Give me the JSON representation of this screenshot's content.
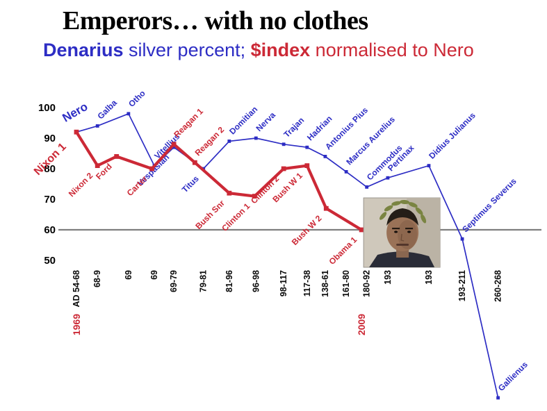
{
  "colors": {
    "blue": "#2d2dc4",
    "red": "#cc2936",
    "gray_line": "#7f7f7f",
    "black": "#000000"
  },
  "images": {
    "obama_photo": "obama-with-laurel-wreath"
  },
  "chart_data": {
    "type": "line",
    "title": "Emperors… with no clothes",
    "subtitle_parts": {
      "denarius": "Denarius",
      "silver": " silver percent; ",
      "index": "$index",
      "normalised": " normalised to Nero"
    },
    "ylim": [
      0,
      100
    ],
    "yticks": [
      100,
      90,
      80,
      70,
      60,
      50
    ],
    "reference_line": 60,
    "grid": false,
    "legend": "none (subtitle acts as legend)",
    "series": [
      {
        "name": "Denarius silver percent",
        "color": "#2d2dc4",
        "style": "thin",
        "points": [
          {
            "label": "Nero",
            "period": "AD 54-68",
            "x": 3.2,
            "value": 92,
            "labelPos": "above",
            "big": true
          },
          {
            "label": "Galba",
            "period": "68-9",
            "x": 7.6,
            "value": 94,
            "labelPos": "above"
          },
          {
            "label": "Otho",
            "period": "69",
            "x": 14.1,
            "value": 98,
            "labelPos": "above"
          },
          {
            "label": "Vitellius",
            "period": "69",
            "x": 19.5,
            "value": 81,
            "labelPos": "above"
          },
          {
            "label": "Vespasian",
            "period": "69-79",
            "x": 23.6,
            "value": 87,
            "labelPos": "below"
          },
          {
            "label": "Titus",
            "period": "79-81",
            "x": 29.8,
            "value": 80,
            "labelPos": "below"
          },
          {
            "label": "Domitian",
            "period": "81-96",
            "x": 35.2,
            "value": 89,
            "labelPos": "above"
          },
          {
            "label": "Nerva",
            "period": "96-98",
            "x": 40.8,
            "value": 90,
            "labelPos": "above"
          },
          {
            "label": "Trajan",
            "period": "98-117",
            "x": 46.6,
            "value": 88,
            "labelPos": "above"
          },
          {
            "label": "Hadrian",
            "period": "117-38",
            "x": 51.5,
            "value": 87,
            "labelPos": "above"
          },
          {
            "label": "Antonius Pius",
            "period": "138-61",
            "x": 55.3,
            "value": 84,
            "labelPos": "above"
          },
          {
            "label": "Marcus Aurelius",
            "period": "161-80",
            "x": 59.7,
            "value": 79,
            "labelPos": "above"
          },
          {
            "label": "Commodus",
            "period": "180-92",
            "x": 64.0,
            "value": 74,
            "labelPos": "above"
          },
          {
            "label": "Pertinax",
            "period": "193",
            "x": 68.4,
            "value": 77,
            "labelPos": "above"
          },
          {
            "label": "Didius Julianus",
            "period": "193",
            "x": 77.0,
            "value": 81,
            "labelPos": "above"
          },
          {
            "label": "Septimus Severus",
            "period": "193-211",
            "x": 84.0,
            "value": 57,
            "labelPos": "above"
          },
          {
            "label": "Gallienus",
            "period": "260-268",
            "x": 91.5,
            "value": 5,
            "labelPos": "above"
          }
        ]
      },
      {
        "name": "$index normalised to Nero",
        "color": "#cc2936",
        "style": "thick",
        "points": [
          {
            "label": "Nixon 1",
            "year": "1969",
            "x": 3.2,
            "value": 92,
            "labelPos": "below",
            "big": true
          },
          {
            "label": "Nixon 2",
            "x": 7.6,
            "value": 81,
            "labelPos": "below"
          },
          {
            "label": "Ford",
            "x": 11.6,
            "value": 84,
            "labelPos": "below"
          },
          {
            "label": "Carter",
            "x": 19.0,
            "value": 80,
            "labelPos": "below"
          },
          {
            "label": "Reagan 1",
            "x": 23.6,
            "value": 88,
            "labelPos": "above"
          },
          {
            "label": "Reagan 2",
            "x": 28.0,
            "value": 82,
            "labelPos": "above"
          },
          {
            "label": "Bush Snr",
            "x": 35.2,
            "value": 72,
            "labelPos": "below"
          },
          {
            "label": "Clinton 1",
            "x": 40.5,
            "value": 71,
            "labelPos": "below"
          },
          {
            "label": "Clinton 2",
            "x": 46.6,
            "value": 80,
            "labelPos": "below"
          },
          {
            "label": "Bush W 1",
            "x": 51.5,
            "value": 81,
            "labelPos": "below"
          },
          {
            "label": "Bush W 2",
            "x": 55.5,
            "value": 67,
            "labelPos": "below"
          },
          {
            "label": "Obama 1",
            "year": "2009",
            "x": 62.9,
            "value": 60,
            "labelPos": "below"
          }
        ]
      }
    ]
  }
}
